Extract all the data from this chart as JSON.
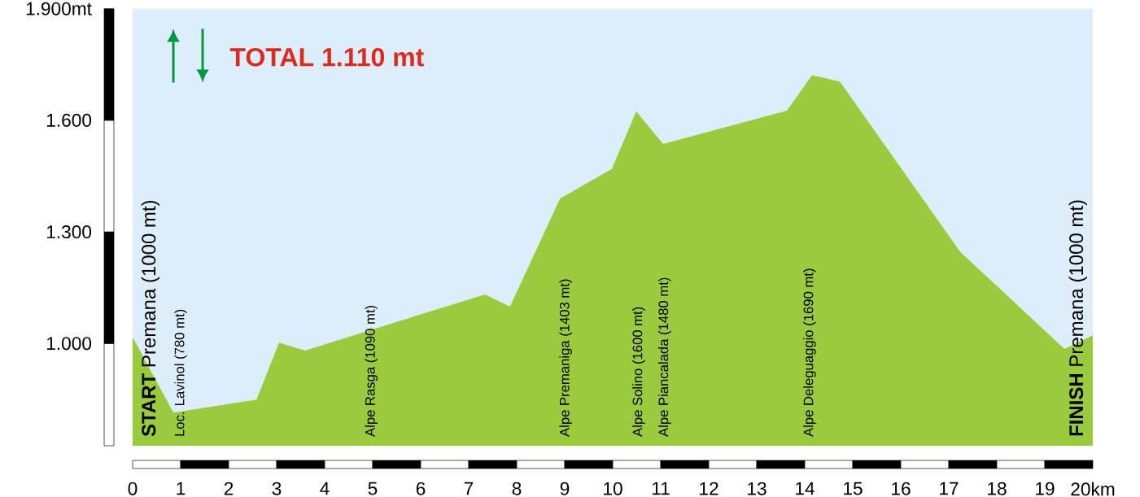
{
  "chart_data": {
    "type": "area",
    "title": "TOTAL 1.110 mt",
    "color": "#9acb3f",
    "x": [
      0,
      0.85,
      2.58,
      3.05,
      3.59,
      7.34,
      7.86,
      8.9,
      9.98,
      10.49,
      11.05,
      13.63,
      14.15,
      14.73,
      17.24,
      19.41,
      20
    ],
    "values": [
      1017,
      814,
      849,
      1002,
      981,
      1132,
      1099,
      1389,
      1469,
      1624,
      1536,
      1626,
      1721,
      1704,
      1246,
      985,
      1022
    ],
    "xlim": [
      0,
      20
    ],
    "ylim": [
      725,
      1900
    ],
    "xticks": [
      0,
      1,
      2,
      3,
      4,
      5,
      6,
      7,
      8,
      9,
      10,
      11,
      12,
      13,
      14,
      15,
      16,
      17,
      18,
      19,
      {
        "value": 20,
        "label": "20km"
      }
    ],
    "yticks": [
      {
        "value": 1000,
        "label": "1.000"
      },
      {
        "value": 1300,
        "label": "1.300"
      },
      {
        "value": 1600,
        "label": "1.600"
      },
      {
        "value": 1900,
        "label": "1.900mt"
      }
    ],
    "annotations": [
      "**START** Premana (1000 mt)",
      "Loc. Lavinol (780 mt)",
      "Alpe Rasga (1090 mt)",
      "Alpe Premaniga (1403 mt)",
      "Alpe Solino (1600 mt)",
      "Alpe Piancalada (1480 mt)",
      "Alpe Deleguaggio (1690 mt)",
      "**FINISH** Premana (1000 mt)"
    ]
  }
}
